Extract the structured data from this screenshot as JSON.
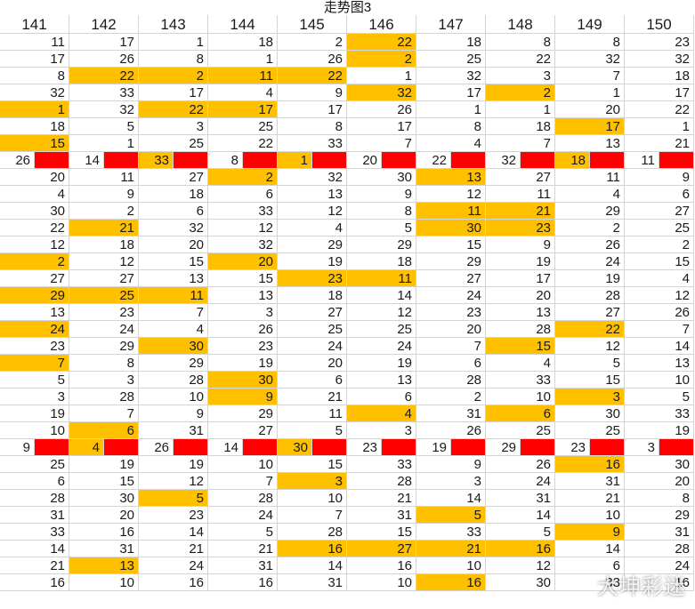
{
  "title": "走势图3",
  "watermark": "大坤彩迷",
  "colors": {
    "highlight": "#ffc000",
    "separator": "#ff0000",
    "grid": "#d4d4d4"
  },
  "columns": [
    "141",
    "142",
    "143",
    "144",
    "145",
    "146",
    "147",
    "148",
    "149",
    "150"
  ],
  "rows": [
    [
      "11",
      "17",
      "1",
      "18",
      "2",
      "22",
      "18",
      "8",
      "8",
      "23"
    ],
    [
      "17",
      "26",
      "8",
      "1",
      "26",
      "2",
      "25",
      "22",
      "32",
      "32"
    ],
    [
      "8",
      "22",
      "2",
      "11",
      "22",
      "1",
      "32",
      "3",
      "7",
      "18"
    ],
    [
      "32",
      "33",
      "17",
      "4",
      "9",
      "32",
      "17",
      "2",
      "1",
      "17"
    ],
    [
      "1",
      "32",
      "22",
      "17",
      "17",
      "26",
      "1",
      "1",
      "20",
      "22"
    ],
    [
      "18",
      "5",
      "3",
      "25",
      "8",
      "17",
      "8",
      "18",
      "17",
      "1"
    ],
    [
      "15",
      "1",
      "25",
      "22",
      "33",
      "7",
      "4",
      "7",
      "13",
      "21"
    ],
    [
      "26",
      "14",
      "33",
      "8",
      "1",
      "20",
      "22",
      "32",
      "18",
      "11"
    ],
    [
      "20",
      "11",
      "27",
      "2",
      "32",
      "30",
      "13",
      "27",
      "11",
      "9"
    ],
    [
      "4",
      "9",
      "18",
      "6",
      "13",
      "9",
      "12",
      "11",
      "4",
      "6"
    ],
    [
      "30",
      "2",
      "6",
      "33",
      "12",
      "8",
      "11",
      "21",
      "29",
      "27"
    ],
    [
      "22",
      "21",
      "32",
      "12",
      "4",
      "5",
      "30",
      "23",
      "2",
      "25"
    ],
    [
      "12",
      "18",
      "20",
      "32",
      "29",
      "29",
      "15",
      "9",
      "26",
      "2"
    ],
    [
      "2",
      "12",
      "15",
      "20",
      "19",
      "18",
      "29",
      "19",
      "24",
      "15"
    ],
    [
      "27",
      "27",
      "13",
      "15",
      "23",
      "11",
      "27",
      "17",
      "19",
      "4"
    ],
    [
      "29",
      "25",
      "11",
      "13",
      "18",
      "14",
      "24",
      "20",
      "28",
      "12"
    ],
    [
      "13",
      "23",
      "7",
      "3",
      "27",
      "12",
      "23",
      "13",
      "27",
      "26"
    ],
    [
      "24",
      "24",
      "4",
      "26",
      "25",
      "25",
      "20",
      "28",
      "22",
      "7"
    ],
    [
      "23",
      "29",
      "30",
      "23",
      "24",
      "24",
      "7",
      "15",
      "12",
      "14"
    ],
    [
      "7",
      "8",
      "29",
      "19",
      "20",
      "19",
      "6",
      "4",
      "5",
      "13"
    ],
    [
      "5",
      "3",
      "28",
      "30",
      "6",
      "13",
      "28",
      "33",
      "15",
      "10"
    ],
    [
      "3",
      "28",
      "10",
      "9",
      "21",
      "6",
      "2",
      "10",
      "3",
      "5"
    ],
    [
      "19",
      "7",
      "9",
      "29",
      "11",
      "4",
      "31",
      "6",
      "30",
      "33"
    ],
    [
      "10",
      "6",
      "31",
      "27",
      "5",
      "3",
      "26",
      "25",
      "25",
      "19"
    ],
    [
      "9",
      "4",
      "26",
      "14",
      "30",
      "23",
      "19",
      "29",
      "23",
      "3"
    ],
    [
      "25",
      "19",
      "19",
      "10",
      "15",
      "33",
      "9",
      "26",
      "16",
      "30"
    ],
    [
      "6",
      "15",
      "12",
      "7",
      "3",
      "28",
      "3",
      "24",
      "31",
      "20"
    ],
    [
      "28",
      "30",
      "5",
      "28",
      "10",
      "21",
      "14",
      "31",
      "21",
      "8"
    ],
    [
      "31",
      "20",
      "23",
      "24",
      "7",
      "31",
      "5",
      "14",
      "10",
      "29"
    ],
    [
      "33",
      "16",
      "14",
      "5",
      "28",
      "15",
      "33",
      "5",
      "9",
      "31"
    ],
    [
      "14",
      "31",
      "21",
      "21",
      "16",
      "27",
      "21",
      "16",
      "14",
      "28"
    ],
    [
      "21",
      "13",
      "24",
      "31",
      "14",
      "16",
      "10",
      "12",
      "6",
      "24"
    ],
    [
      "16",
      "10",
      "16",
      "16",
      "31",
      "10",
      "16",
      "30",
      "33",
      "16"
    ]
  ],
  "highlights": [
    [
      0,
      5
    ],
    [
      1,
      5
    ],
    [
      2,
      1
    ],
    [
      2,
      2
    ],
    [
      2,
      3
    ],
    [
      2,
      4
    ],
    [
      3,
      5
    ],
    [
      3,
      7
    ],
    [
      4,
      0
    ],
    [
      4,
      2
    ],
    [
      4,
      3
    ],
    [
      5,
      8
    ],
    [
      6,
      0
    ],
    [
      7,
      2
    ],
    [
      7,
      4
    ],
    [
      7,
      8
    ],
    [
      8,
      3
    ],
    [
      8,
      6
    ],
    [
      10,
      6
    ],
    [
      10,
      7
    ],
    [
      11,
      1
    ],
    [
      11,
      6
    ],
    [
      11,
      7
    ],
    [
      13,
      0
    ],
    [
      13,
      3
    ],
    [
      14,
      4
    ],
    [
      14,
      5
    ],
    [
      15,
      0
    ],
    [
      15,
      1
    ],
    [
      15,
      2
    ],
    [
      17,
      0
    ],
    [
      17,
      8
    ],
    [
      18,
      2
    ],
    [
      18,
      7
    ],
    [
      19,
      0
    ],
    [
      20,
      3
    ],
    [
      21,
      3
    ],
    [
      21,
      8
    ],
    [
      22,
      5
    ],
    [
      22,
      7
    ],
    [
      23,
      1
    ],
    [
      24,
      1
    ],
    [
      24,
      4
    ],
    [
      25,
      8
    ],
    [
      26,
      4
    ],
    [
      27,
      2
    ],
    [
      28,
      6
    ],
    [
      29,
      8
    ],
    [
      30,
      4
    ],
    [
      30,
      5
    ],
    [
      30,
      6
    ],
    [
      30,
      7
    ],
    [
      31,
      1
    ],
    [
      32,
      6
    ]
  ],
  "separator_rows": [
    7,
    24
  ]
}
